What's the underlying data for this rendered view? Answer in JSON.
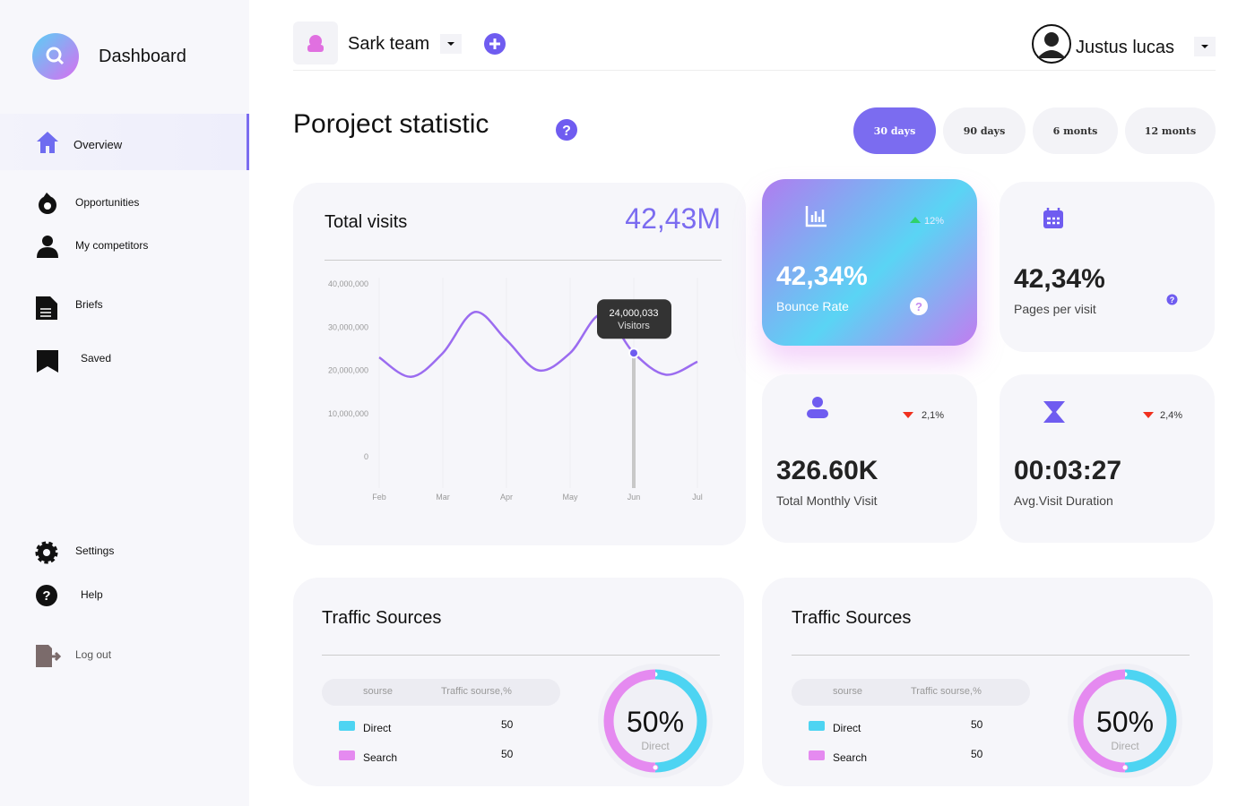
{
  "sidebar": {
    "brand": "Dashboard",
    "nav": [
      "Overview",
      "Opportunities",
      "My competitors",
      "Briefs",
      "Saved"
    ],
    "bottom": [
      "Settings",
      "Help",
      "Log out"
    ]
  },
  "header": {
    "team": "Sark team",
    "user": "Justus lucas"
  },
  "page_title": "Poroject statistic",
  "periods": [
    "30 days",
    "90 days",
    "6 monts",
    "12 monts"
  ],
  "visits_card": {
    "title": "Total visits",
    "total": "42,43M"
  },
  "chart_data": {
    "type": "line",
    "categories": [
      "Feb",
      null,
      "Mar",
      null,
      "Apr",
      null,
      "May",
      null,
      "Jun",
      null,
      "Jul"
    ],
    "series": [
      {
        "name": "Visitors",
        "color": "#9b6cf0",
        "values": [
          23000000,
          18500000,
          24000000,
          33500000,
          27000000,
          20000000,
          24000000,
          33000000,
          24000033,
          19000000,
          22000000
        ],
        "value_labels": [
          null,
          null,
          null,
          null,
          null,
          null,
          null,
          null,
          "24,000,033",
          null,
          null
        ]
      }
    ],
    "ylim": [
      0,
      40000000
    ],
    "yticks": [
      0,
      {
        "value": 10000000,
        "label": "10,000,000"
      },
      {
        "value": 20000000,
        "label": "20,000,000"
      },
      {
        "value": 30000000,
        "label": "30,000,000"
      },
      {
        "value": 40000000,
        "label": "40,000,000"
      }
    ]
  },
  "stats": [
    {
      "value": "42,34%",
      "label": "Bounce Rate",
      "change": "12%"
    },
    {
      "value": "42,34%",
      "label": "Pages per visit"
    },
    {
      "value": "326.60K",
      "label": "Total Monthly Visit",
      "change": "2,1%"
    },
    {
      "value": "00:03:27",
      "label": "Avg.Visit Duration",
      "change": "2,4%"
    }
  ],
  "traffic": [
    {
      "title": "Traffic Sources",
      "columns": [
        "sourse",
        "Traffic sourse,%"
      ],
      "rows": [
        {
          "name": "Direct",
          "color": "#4dd4f2",
          "value": 50
        },
        {
          "name": "Search",
          "color": "#e58af0",
          "value": 50
        }
      ],
      "donut_value": "50%",
      "donut_label": "Direct"
    },
    {
      "title": "Traffic Sources",
      "columns": [
        "sourse",
        "Traffic sourse,%"
      ],
      "rows": [
        {
          "name": "Direct",
          "color": "#4dd4f2",
          "value": 50
        },
        {
          "name": "Search",
          "color": "#e58af0",
          "value": 50
        }
      ],
      "donut_value": "50%",
      "donut_label": "Direct"
    }
  ]
}
